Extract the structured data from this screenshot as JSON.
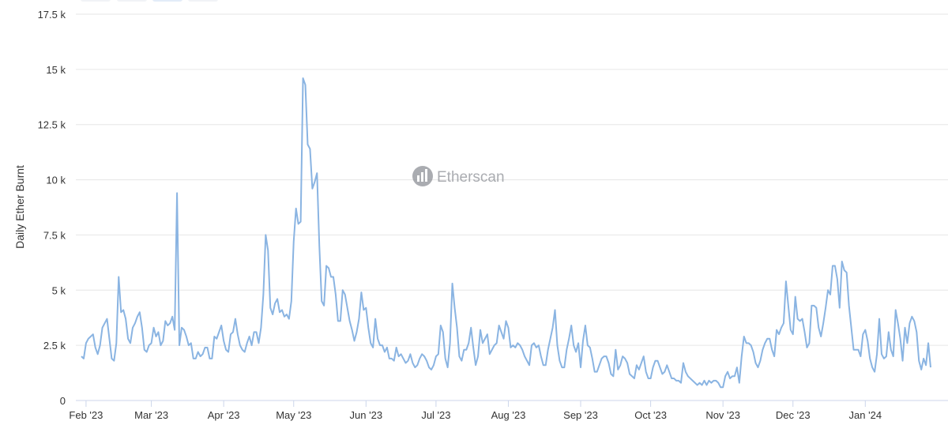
{
  "chart_data": {
    "type": "line",
    "y_label": "Daily Ether Burnt",
    "watermark": "Etherscan",
    "color": "#8ab4e2",
    "grid": true,
    "ylim": [
      0,
      17500
    ],
    "yticks": [
      {
        "value": 0,
        "label": "0"
      },
      {
        "value": 2500,
        "label": "2.5 k"
      },
      {
        "value": 5000,
        "label": "5 k"
      },
      {
        "value": 7500,
        "label": "7.5 k"
      },
      {
        "value": 10000,
        "label": "10 k"
      },
      {
        "value": 12500,
        "label": "12.5 k"
      },
      {
        "value": 15000,
        "label": "15 k"
      },
      {
        "value": 17500,
        "label": "17.5 k"
      }
    ],
    "categories": [
      null,
      null,
      "Feb '23",
      null,
      null,
      null,
      null,
      null,
      null,
      null,
      null,
      null,
      null,
      null,
      null,
      null,
      null,
      null,
      null,
      null,
      null,
      null,
      null,
      null,
      null,
      null,
      null,
      null,
      null,
      null,
      "Mar '23",
      null,
      null,
      null,
      null,
      null,
      null,
      null,
      null,
      null,
      null,
      null,
      null,
      null,
      null,
      null,
      null,
      null,
      null,
      null,
      null,
      null,
      null,
      null,
      null,
      null,
      null,
      null,
      null,
      null,
      null,
      "Apr '23",
      null,
      null,
      null,
      null,
      null,
      null,
      null,
      null,
      null,
      null,
      null,
      null,
      null,
      null,
      null,
      null,
      null,
      null,
      null,
      null,
      null,
      null,
      null,
      null,
      null,
      null,
      null,
      null,
      null,
      "May '23",
      null,
      null,
      null,
      null,
      null,
      null,
      null,
      null,
      null,
      null,
      null,
      null,
      null,
      null,
      null,
      null,
      null,
      null,
      null,
      null,
      null,
      null,
      null,
      null,
      null,
      null,
      null,
      null,
      null,
      null,
      "Jun '23",
      null,
      null,
      null,
      null,
      null,
      null,
      null,
      null,
      null,
      null,
      null,
      null,
      null,
      null,
      null,
      null,
      null,
      null,
      null,
      null,
      null,
      null,
      null,
      null,
      null,
      null,
      null,
      null,
      null,
      "Jul '23",
      null,
      null,
      null,
      null,
      null,
      null,
      null,
      null,
      null,
      null,
      null,
      null,
      null,
      null,
      null,
      null,
      null,
      null,
      null,
      null,
      null,
      null,
      null,
      null,
      null,
      null,
      null,
      null,
      null,
      null,
      "Aug '23",
      null,
      null,
      null,
      null,
      null,
      null,
      null,
      null,
      null,
      null,
      null,
      null,
      null,
      null,
      null,
      null,
      null,
      null,
      null,
      null,
      null,
      null,
      null,
      null,
      null,
      null,
      null,
      null,
      null,
      null,
      "Sep '23",
      null,
      null,
      null,
      null,
      null,
      null,
      null,
      null,
      null,
      null,
      null,
      null,
      null,
      null,
      null,
      null,
      null,
      null,
      null,
      null,
      null,
      null,
      null,
      null,
      null,
      null,
      null,
      null,
      null,
      "Oct '23",
      null,
      null,
      null,
      null,
      null,
      null,
      null,
      null,
      null,
      null,
      null,
      null,
      null,
      null,
      null,
      null,
      null,
      null,
      null,
      null,
      null,
      null,
      null,
      null,
      null,
      null,
      null,
      null,
      null,
      null,
      "Nov '23",
      null,
      null,
      null,
      null,
      null,
      null,
      null,
      null,
      null,
      null,
      null,
      null,
      null,
      null,
      null,
      null,
      null,
      null,
      null,
      null,
      null,
      null,
      null,
      null,
      null,
      null,
      null,
      null,
      null,
      "Dec '23",
      null,
      null,
      null,
      null,
      null,
      null,
      null,
      null,
      null,
      null,
      null,
      null,
      null,
      null,
      null,
      null,
      null,
      null,
      null,
      null,
      null,
      null,
      null,
      null,
      null,
      null,
      null,
      null,
      null,
      null,
      "Jan '24",
      null,
      null,
      null,
      null,
      null,
      null,
      null,
      null,
      null,
      null,
      null,
      null,
      null,
      null,
      null,
      null,
      null,
      null,
      null,
      null,
      null,
      null,
      null,
      null,
      null,
      null,
      null,
      null
    ],
    "values": [
      2000,
      1900,
      2600,
      2800,
      2900,
      3000,
      2400,
      2100,
      2500,
      3300,
      3500,
      3700,
      2800,
      1900,
      1800,
      2600,
      5600,
      4000,
      4100,
      3700,
      2800,
      2600,
      3300,
      3500,
      3800,
      4000,
      3300,
      2300,
      2200,
      2500,
      2600,
      3300,
      2900,
      3100,
      2500,
      2700,
      3600,
      3400,
      3500,
      3800,
      3200,
      9400,
      2500,
      3300,
      3200,
      2900,
      2500,
      2600,
      1900,
      1900,
      2200,
      2000,
      2100,
      2400,
      2400,
      1900,
      1900,
      2900,
      2800,
      3100,
      3400,
      2700,
      2300,
      2200,
      3000,
      3100,
      3700,
      3000,
      2500,
      2300,
      2200,
      2600,
      2900,
      2500,
      3100,
      3100,
      2600,
      3300,
      4800,
      7500,
      6800,
      4200,
      3900,
      4400,
      4600,
      4000,
      4100,
      3800,
      3900,
      3700,
      4500,
      7200,
      8700,
      8000,
      8100,
      14600,
      14300,
      11600,
      11400,
      9600,
      9900,
      10300,
      7000,
      4500,
      4300,
      6100,
      6000,
      5600,
      5600,
      4800,
      3600,
      3600,
      5000,
      4800,
      4200,
      3600,
      3200,
      2700,
      3100,
      3700,
      4900,
      4100,
      4200,
      3300,
      2600,
      2400,
      3700,
      2800,
      2500,
      2500,
      2200,
      2400,
      1900,
      1900,
      1800,
      2400,
      2000,
      2100,
      1900,
      1700,
      1800,
      2100,
      1700,
      1500,
      1600,
      1900,
      2100,
      2000,
      1800,
      1500,
      1400,
      1600,
      2000,
      2100,
      3400,
      3100,
      1900,
      1500,
      2600,
      5300,
      4200,
      3300,
      2000,
      1800,
      2300,
      2300,
      2600,
      3300,
      2400,
      1600,
      2000,
      3200,
      2600,
      2800,
      3000,
      2100,
      2300,
      2500,
      2600,
      3400,
      3100,
      2800,
      3600,
      3300,
      2400,
      2500,
      2400,
      2600,
      2500,
      2300,
      2000,
      1800,
      1600,
      2500,
      2600,
      2400,
      2500,
      2000,
      1600,
      1600,
      2300,
      2800,
      3300,
      4100,
      2500,
      1800,
      1500,
      1500,
      2300,
      2800,
      3400,
      2500,
      2200,
      2600,
      1500,
      2700,
      3400,
      2500,
      2400,
      1900,
      1300,
      1300,
      1600,
      1900,
      2000,
      2000,
      1700,
      1200,
      1100,
      2300,
      1400,
      1600,
      2000,
      1900,
      1700,
      1200,
      1100,
      1000,
      1600,
      1400,
      1700,
      2000,
      1300,
      1000,
      1000,
      1500,
      1800,
      1800,
      1500,
      1200,
      1300,
      1600,
      1300,
      1000,
      1000,
      900,
      900,
      800,
      1700,
      1300,
      1100,
      1000,
      900,
      800,
      700,
      800,
      700,
      900,
      700,
      900,
      800,
      900,
      900,
      800,
      600,
      600,
      1100,
      1300,
      1000,
      1100,
      1100,
      1500,
      800,
      2000,
      2900,
      2600,
      2600,
      2500,
      2200,
      1700,
      1500,
      1800,
      2300,
      2600,
      2800,
      2800,
      2300,
      2000,
      3200,
      3000,
      3300,
      3500,
      5400,
      4300,
      3200,
      3000,
      4700,
      3700,
      3600,
      3700,
      3100,
      2400,
      2600,
      4300,
      4300,
      4200,
      3300,
      2900,
      3500,
      4200,
      5000,
      4800,
      6100,
      6100,
      5500,
      4200,
      6300,
      5900,
      5800,
      4300,
      3300,
      2300,
      2300,
      2300,
      2000,
      3000,
      3200,
      2700,
      1900,
      1500,
      1300,
      2100,
      3700,
      2100,
      1900,
      2000,
      3100,
      2300,
      2000,
      4100,
      3500,
      2800,
      1800,
      3300,
      2600,
      3500,
      3800,
      3600,
      3100,
      1800,
      1400,
      1900,
      1600,
      2600,
      1500
    ]
  }
}
